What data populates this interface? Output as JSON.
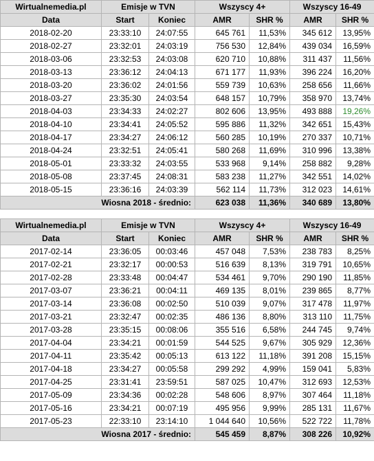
{
  "headers": {
    "brand": "Wirtualnemedia.pl",
    "emisje": "Emisje w TVN",
    "group1": "Wszyscy 4+",
    "group2": "Wszyscy 16-49",
    "data": "Data",
    "start": "Start",
    "koniec": "Koniec",
    "amr": "AMR",
    "shr": "SHR %"
  },
  "table2018": {
    "rows": [
      {
        "date": "2018-02-20",
        "start": "23:33:10",
        "end": "24:07:55",
        "amr1": "645 761",
        "shr1": "11,53%",
        "amr2": "345 612",
        "shr2": "13,95%"
      },
      {
        "date": "2018-02-27",
        "start": "23:32:01",
        "end": "24:03:19",
        "amr1": "756 530",
        "shr1": "12,84%",
        "amr2": "439 034",
        "shr2": "16,59%"
      },
      {
        "date": "2018-03-06",
        "start": "23:32:53",
        "end": "24:03:08",
        "amr1": "620 710",
        "shr1": "10,88%",
        "amr2": "311 437",
        "shr2": "11,56%"
      },
      {
        "date": "2018-03-13",
        "start": "23:36:12",
        "end": "24:04:13",
        "amr1": "671 177",
        "shr1": "11,93%",
        "amr2": "396 224",
        "shr2": "16,20%"
      },
      {
        "date": "2018-03-20",
        "start": "23:36:02",
        "end": "24:01:56",
        "amr1": "559 739",
        "shr1": "10,63%",
        "amr2": "258 656",
        "shr2": "11,66%"
      },
      {
        "date": "2018-03-27",
        "start": "23:35:30",
        "end": "24:03:54",
        "amr1": "648 157",
        "shr1": "10,79%",
        "amr2": "358 970",
        "shr2": "13,74%"
      },
      {
        "date": "2018-04-03",
        "start": "23:34:33",
        "end": "24:02:27",
        "amr1": "802 606",
        "shr1": "13,95%",
        "amr2": "493 888",
        "shr2": "19,26%",
        "hl": true
      },
      {
        "date": "2018-04-10",
        "start": "23:34:41",
        "end": "24:05:52",
        "amr1": "595 886",
        "shr1": "11,32%",
        "amr2": "342 651",
        "shr2": "15,43%"
      },
      {
        "date": "2018-04-17",
        "start": "23:34:27",
        "end": "24:06:12",
        "amr1": "560 285",
        "shr1": "10,19%",
        "amr2": "270 337",
        "shr2": "10,71%"
      },
      {
        "date": "2018-04-24",
        "start": "23:32:51",
        "end": "24:05:41",
        "amr1": "580 268",
        "shr1": "11,69%",
        "amr2": "310 996",
        "shr2": "13,38%"
      },
      {
        "date": "2018-05-01",
        "start": "23:33:32",
        "end": "24:03:55",
        "amr1": "533 968",
        "shr1": "9,14%",
        "amr2": "258 882",
        "shr2": "9,28%"
      },
      {
        "date": "2018-05-08",
        "start": "23:37:45",
        "end": "24:08:31",
        "amr1": "583 238",
        "shr1": "11,27%",
        "amr2": "342 551",
        "shr2": "14,02%"
      },
      {
        "date": "2018-05-15",
        "start": "23:36:16",
        "end": "24:03:39",
        "amr1": "562 114",
        "shr1": "11,73%",
        "amr2": "312 023",
        "shr2": "14,61%"
      }
    ],
    "avg": {
      "label": "Wiosna 2018 - średnio:",
      "amr1": "623 038",
      "shr1": "11,36%",
      "amr2": "340 689",
      "shr2": "13,80%"
    }
  },
  "table2017": {
    "rows": [
      {
        "date": "2017-02-14",
        "start": "23:36:05",
        "end": "00:03:46",
        "amr1": "457 048",
        "shr1": "7,53%",
        "amr2": "238 783",
        "shr2": "8,25%"
      },
      {
        "date": "2017-02-21",
        "start": "23:32:17",
        "end": "00:00:53",
        "amr1": "516 639",
        "shr1": "8,13%",
        "amr2": "319 791",
        "shr2": "10,65%"
      },
      {
        "date": "2017-02-28",
        "start": "23:33:48",
        "end": "00:04:47",
        "amr1": "534 461",
        "shr1": "9,70%",
        "amr2": "290 190",
        "shr2": "11,85%"
      },
      {
        "date": "2017-03-07",
        "start": "23:36:21",
        "end": "00:04:11",
        "amr1": "469 135",
        "shr1": "8,01%",
        "amr2": "239 865",
        "shr2": "8,77%"
      },
      {
        "date": "2017-03-14",
        "start": "23:36:08",
        "end": "00:02:50",
        "amr1": "510 039",
        "shr1": "9,07%",
        "amr2": "317 478",
        "shr2": "11,97%"
      },
      {
        "date": "2017-03-21",
        "start": "23:32:47",
        "end": "00:02:35",
        "amr1": "486 136",
        "shr1": "8,80%",
        "amr2": "313 110",
        "shr2": "11,75%"
      },
      {
        "date": "2017-03-28",
        "start": "23:35:15",
        "end": "00:08:06",
        "amr1": "355 516",
        "shr1": "6,58%",
        "amr2": "244 745",
        "shr2": "9,74%"
      },
      {
        "date": "2017-04-04",
        "start": "23:34:21",
        "end": "00:01:59",
        "amr1": "544 525",
        "shr1": "9,67%",
        "amr2": "305 929",
        "shr2": "12,36%"
      },
      {
        "date": "2017-04-11",
        "start": "23:35:42",
        "end": "00:05:13",
        "amr1": "613 122",
        "shr1": "11,18%",
        "amr2": "391 208",
        "shr2": "15,15%"
      },
      {
        "date": "2017-04-18",
        "start": "23:34:27",
        "end": "00:05:58",
        "amr1": "299 292",
        "shr1": "4,99%",
        "amr2": "159 041",
        "shr2": "5,83%"
      },
      {
        "date": "2017-04-25",
        "start": "23:31:41",
        "end": "23:59:51",
        "amr1": "587 025",
        "shr1": "10,47%",
        "amr2": "312 693",
        "shr2": "12,53%"
      },
      {
        "date": "2017-05-09",
        "start": "23:34:36",
        "end": "00:02:28",
        "amr1": "548 606",
        "shr1": "8,97%",
        "amr2": "307 464",
        "shr2": "11,18%"
      },
      {
        "date": "2017-05-16",
        "start": "23:34:21",
        "end": "00:07:19",
        "amr1": "495 956",
        "shr1": "9,99%",
        "amr2": "285 131",
        "shr2": "11,67%"
      },
      {
        "date": "2017-05-23",
        "start": "22:33:10",
        "end": "23:14:10",
        "amr1": "1 044 640",
        "shr1": "10,56%",
        "amr2": "522 722",
        "shr2": "11,78%"
      }
    ],
    "avg": {
      "label": "Wiosna 2017 - średnio:",
      "amr1": "545 459",
      "shr1": "8,87%",
      "amr2": "308 226",
      "shr2": "10,92%"
    }
  },
  "colors": {
    "header_bg": "#dcdcdc",
    "highlight": "#2e8b2e",
    "border": "#b4b4b4"
  }
}
